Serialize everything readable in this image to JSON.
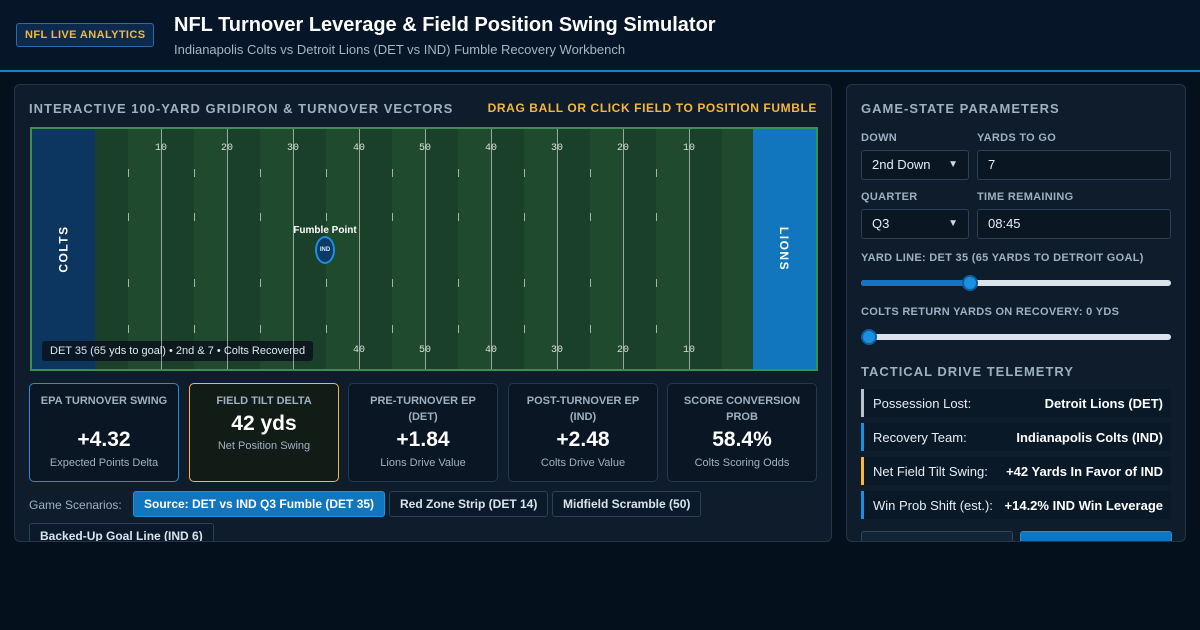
{
  "header": {
    "badge": "NFL LIVE ANALYTICS",
    "title": "NFL Turnover Leverage & Field Position Swing Simulator",
    "subtitle": "Indianapolis Colts vs Detroit Lions (DET vs IND) Fumble Recovery Workbench"
  },
  "left": {
    "title": "INTERACTIVE 100-YARD GRIDIRON & TURNOVER VECTORS",
    "hint": "DRAG BALL OR CLICK FIELD TO POSITION FUMBLE",
    "field": {
      "endzone_left": "COLTS",
      "endzone_right": "LIONS",
      "top_numbers": [
        "10",
        "20",
        "30",
        "40",
        "50",
        "40",
        "30",
        "20",
        "10"
      ],
      "bottom_numbers": [
        "40",
        "50",
        "40",
        "30",
        "20",
        "10"
      ],
      "fumble_label": "Fumble Point",
      "ball_label": "IND",
      "caption": "DET 35 (65 yds to goal) • 2nd & 7 • Colts Recovered"
    },
    "stats": [
      {
        "label": "EPA TURNOVER SWING",
        "value": "+4.32",
        "note": "Expected Points Delta"
      },
      {
        "label": "FIELD TILT DELTA",
        "value": "42 yds",
        "note": "Net Position Swing"
      },
      {
        "label": "PRE-TURNOVER EP (DET)",
        "value": "+1.84",
        "note": "Lions Drive Value"
      },
      {
        "label": "POST-TURNOVER EP (IND)",
        "value": "+2.48",
        "note": "Colts Drive Value"
      },
      {
        "label": "SCORE CONVERSION PROB",
        "value": "58.4%",
        "note": "Colts Scoring Odds"
      }
    ],
    "scenarios": {
      "label": "Game Scenarios:",
      "items": [
        "Source: DET vs IND Q3 Fumble (DET 35)",
        "Red Zone Strip (DET 14)",
        "Midfield Scramble (50)",
        "Backed-Up Goal Line (IND 6)"
      ]
    }
  },
  "right": {
    "title": "GAME-STATE PARAMETERS",
    "down_label": "DOWN",
    "down_value": "2nd Down",
    "ytg_label": "YARDS TO GO",
    "ytg_value": "7",
    "quarter_label": "QUARTER",
    "quarter_value": "Q3",
    "time_label": "TIME REMAINING",
    "time_value": "08:45",
    "yardline_label": "YARD LINE: DET 35 (65 YARDS TO DETROIT GOAL)",
    "yardline_fraction": 0.35,
    "return_label": "COLTS RETURN YARDS ON RECOVERY: 0 YDS",
    "return_fraction": 0.0,
    "telemetry_title": "TACTICAL DRIVE TELEMETRY",
    "telemetry": [
      {
        "k": "Possession Lost:",
        "v": "Detroit Lions (DET)"
      },
      {
        "k": "Recovery Team:",
        "v": "Indianapolis Colts (IND)"
      },
      {
        "k": "Net Field Tilt Swing:",
        "v": "+42 Yards In Favor of IND"
      },
      {
        "k": "Win Prob Shift (est.):",
        "v": "+14.2% IND Win Leverage"
      }
    ]
  },
  "colors": {
    "accent_blue": "#1176bd",
    "accent_gold": "#f7b73a",
    "colts_navy": "#0c3560",
    "field_green": "#1f4a2e"
  }
}
